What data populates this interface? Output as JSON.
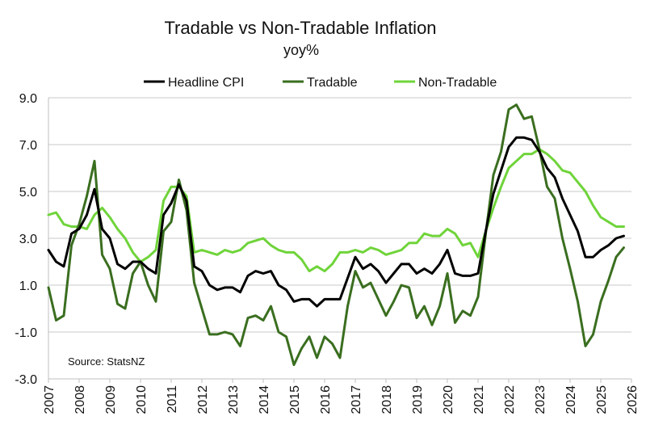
{
  "chart_data": {
    "type": "line",
    "title": "Tradable vs Non-Tradable Inflation",
    "subtitle": "yoy%",
    "source": "Source: StatsNZ",
    "ylim": [
      -3.0,
      9.0
    ],
    "yticks": [
      "9.0",
      "7.0",
      "5.0",
      "3.0",
      "1.0",
      "-1.0",
      "-3.0"
    ],
    "ytick_values": [
      9,
      7,
      5,
      3,
      1,
      -1,
      -3
    ],
    "xlim": [
      2007,
      2026
    ],
    "xticks": [
      "2007",
      "2008",
      "2009",
      "2010",
      "2011",
      "2012",
      "2013",
      "2014",
      "2015",
      "2016",
      "2017",
      "2018",
      "2019",
      "2020",
      "2021",
      "2022",
      "2023",
      "2024",
      "2025",
      "2026"
    ],
    "xtick_values": [
      2007,
      2008,
      2009,
      2010,
      2011,
      2012,
      2013,
      2014,
      2015,
      2016,
      2017,
      2018,
      2019,
      2020,
      2021,
      2022,
      2023,
      2024,
      2025,
      2026
    ],
    "grid": "horizontal",
    "legend_position": "top",
    "x": [
      2007.0,
      2007.25,
      2007.5,
      2007.75,
      2008.0,
      2008.25,
      2008.5,
      2008.75,
      2009.0,
      2009.25,
      2009.5,
      2009.75,
      2010.0,
      2010.25,
      2010.5,
      2010.75,
      2011.0,
      2011.25,
      2011.5,
      2011.75,
      2012.0,
      2012.25,
      2012.5,
      2012.75,
      2013.0,
      2013.25,
      2013.5,
      2013.75,
      2014.0,
      2014.25,
      2014.5,
      2014.75,
      2015.0,
      2015.25,
      2015.5,
      2015.75,
      2016.0,
      2016.25,
      2016.5,
      2016.75,
      2017.0,
      2017.25,
      2017.5,
      2017.75,
      2018.0,
      2018.25,
      2018.5,
      2018.75,
      2019.0,
      2019.25,
      2019.5,
      2019.75,
      2020.0,
      2020.25,
      2020.5,
      2020.75,
      2021.0,
      2021.25,
      2021.5,
      2021.75,
      2022.0,
      2022.25,
      2022.5,
      2022.75,
      2023.0,
      2023.25,
      2023.5,
      2023.75,
      2024.0,
      2024.25,
      2024.5,
      2024.75,
      2025.0,
      2025.25,
      2025.5,
      2025.75
    ],
    "series": [
      {
        "name": "Headline CPI",
        "color": "#000000",
        "values": [
          2.5,
          2.0,
          1.8,
          3.2,
          3.4,
          4.0,
          5.1,
          3.4,
          3.0,
          1.9,
          1.7,
          2.0,
          2.0,
          1.7,
          1.5,
          4.0,
          4.5,
          5.3,
          4.6,
          1.8,
          1.6,
          1.0,
          0.8,
          0.9,
          0.9,
          0.7,
          1.4,
          1.6,
          1.5,
          1.6,
          1.0,
          0.8,
          0.3,
          0.4,
          0.4,
          0.1,
          0.4,
          0.4,
          0.4,
          1.3,
          2.2,
          1.7,
          1.9,
          1.6,
          1.1,
          1.5,
          1.9,
          1.9,
          1.5,
          1.7,
          1.5,
          1.9,
          2.5,
          1.5,
          1.4,
          1.4,
          1.5,
          3.3,
          4.9,
          5.9,
          6.9,
          7.3,
          7.3,
          7.2,
          6.7,
          6.0,
          5.6,
          4.7,
          4.0,
          3.3,
          2.2,
          2.2,
          2.5,
          2.7,
          3.0,
          3.1
        ]
      },
      {
        "name": "Tradable",
        "color": "#3a6e1f",
        "values": [
          0.9,
          -0.5,
          -0.3,
          2.7,
          3.6,
          4.8,
          6.3,
          2.3,
          1.7,
          0.2,
          0.0,
          1.5,
          2.0,
          1.0,
          0.3,
          3.3,
          3.7,
          5.5,
          4.2,
          1.1,
          0.0,
          -1.1,
          -1.1,
          -1.0,
          -1.1,
          -1.6,
          -0.4,
          -0.3,
          -0.5,
          0.1,
          -1.0,
          -1.2,
          -2.4,
          -1.7,
          -1.2,
          -2.1,
          -1.2,
          -1.5,
          -2.1,
          0.1,
          1.6,
          0.9,
          1.1,
          0.4,
          -0.3,
          0.3,
          1.0,
          0.9,
          -0.4,
          0.1,
          -0.7,
          0.1,
          1.5,
          -0.6,
          -0.1,
          -0.3,
          0.5,
          3.2,
          5.7,
          6.7,
          8.5,
          8.7,
          8.1,
          8.2,
          6.8,
          5.2,
          4.7,
          3.0,
          1.7,
          0.3,
          -1.6,
          -1.1,
          0.3,
          1.2,
          2.2,
          2.6
        ]
      },
      {
        "name": "Non-Tradable",
        "color": "#6fd43a",
        "values": [
          4.0,
          4.1,
          3.6,
          3.5,
          3.5,
          3.4,
          4.0,
          4.3,
          3.9,
          3.4,
          3.0,
          2.4,
          2.0,
          2.2,
          2.5,
          4.6,
          5.2,
          5.2,
          4.8,
          2.4,
          2.5,
          2.4,
          2.3,
          2.5,
          2.4,
          2.5,
          2.8,
          2.9,
          3.0,
          2.7,
          2.5,
          2.4,
          2.4,
          2.1,
          1.6,
          1.8,
          1.6,
          1.9,
          2.4,
          2.4,
          2.5,
          2.4,
          2.6,
          2.5,
          2.3,
          2.4,
          2.5,
          2.8,
          2.8,
          3.2,
          3.1,
          3.1,
          3.4,
          3.2,
          2.7,
          2.8,
          2.2,
          3.3,
          4.3,
          5.2,
          6.0,
          6.3,
          6.6,
          6.6,
          6.8,
          6.6,
          6.3,
          5.9,
          5.8,
          5.4,
          5.0,
          4.4,
          3.9,
          3.7,
          3.5,
          3.5
        ]
      }
    ]
  }
}
